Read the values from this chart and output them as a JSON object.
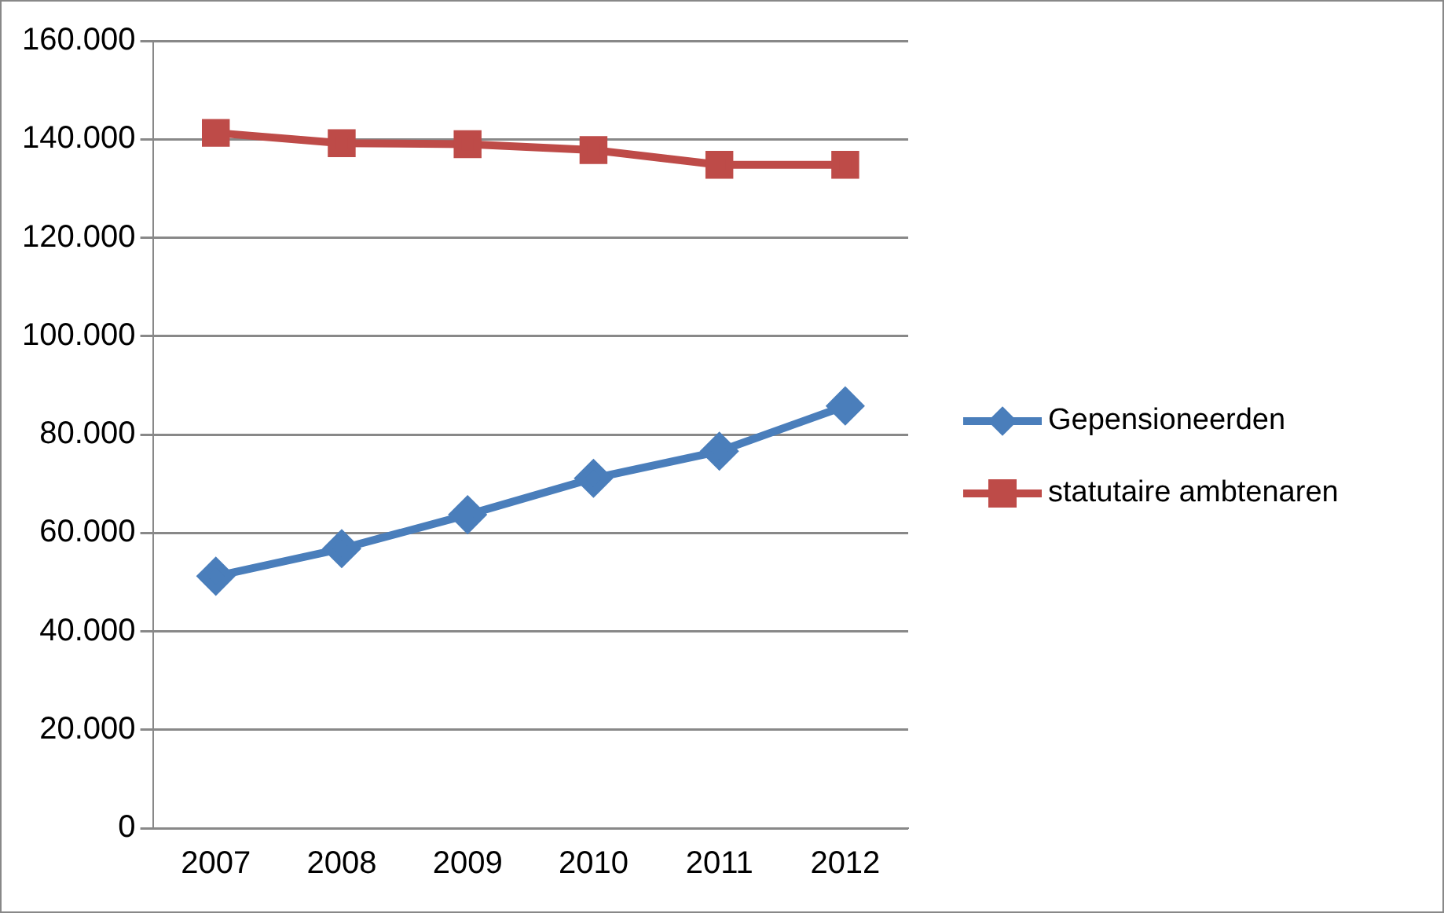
{
  "chart_data": {
    "type": "line",
    "categories": [
      "2007",
      "2008",
      "2009",
      "2010",
      "2011",
      "2012"
    ],
    "series": [
      {
        "name": "Gepensioneerden",
        "color": "#4a7ebb",
        "marker": "diamond",
        "values": [
          51200,
          56800,
          63700,
          71100,
          76600,
          85800
        ]
      },
      {
        "name": "statutaire ambtenaren",
        "color": "#be4b48",
        "marker": "square",
        "values": [
          141300,
          139200,
          139000,
          137800,
          134800,
          134800
        ]
      }
    ],
    "ylim": [
      0,
      160000
    ],
    "yticks": [
      0,
      {
        "value": 20000,
        "label": "20.000"
      },
      {
        "value": 40000,
        "label": "40.000"
      },
      {
        "value": 60000,
        "label": "60.000"
      },
      {
        "value": 80000,
        "label": "80.000"
      },
      {
        "value": 100000,
        "label": "100.000"
      },
      {
        "value": 120000,
        "label": "120.000"
      },
      {
        "value": 140000,
        "label": "140.000"
      },
      {
        "value": 160000,
        "label": "160.000"
      }
    ],
    "grid": "y",
    "legend": "right",
    "line_style": "solid"
  }
}
